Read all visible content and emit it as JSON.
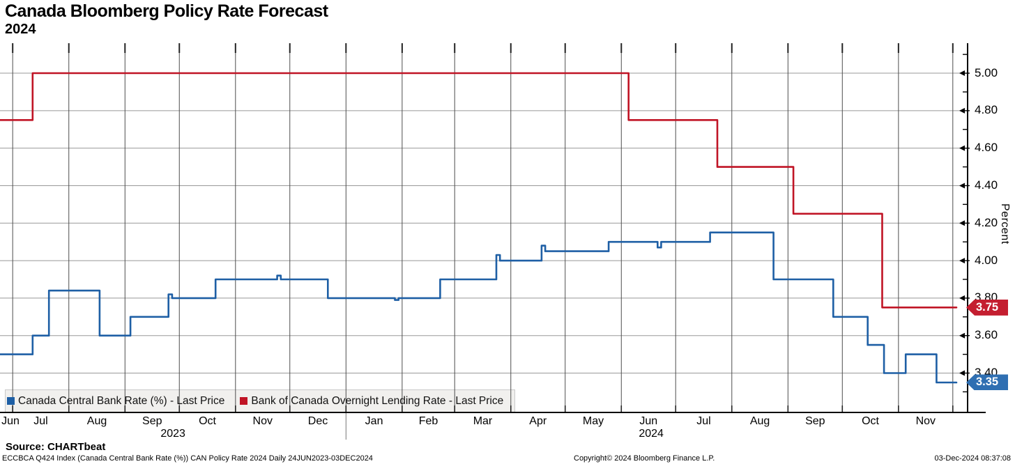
{
  "header": {
    "title": "Canada Bloomberg Policy Rate Forecast",
    "subtitle": "2024"
  },
  "chart_data": {
    "type": "line",
    "style": "step",
    "x_axis": {
      "start_date": "2023-06-24",
      "end_date": "2024-12-03",
      "month_labels": [
        "Jun",
        "Jul",
        "Aug",
        "Sep",
        "Oct",
        "Nov",
        "Dec",
        "Jan",
        "Feb",
        "Mar",
        "Apr",
        "May",
        "Jun",
        "Jul",
        "Aug",
        "Sep",
        "Oct",
        "Nov"
      ],
      "year_labels": [
        "2023",
        "2024"
      ],
      "year_separator_date": "2024-01-01",
      "grid": true
    },
    "y_axis": {
      "label": "Percent",
      "side": "right",
      "visible_range": [
        3.19,
        5.16
      ],
      "major_ticks": [
        5.0,
        4.8,
        4.6,
        4.4,
        4.2,
        4.0,
        3.8,
        3.6,
        3.4
      ],
      "minor_ticks": [
        5.1,
        4.9,
        4.7,
        4.5,
        4.3,
        4.1,
        3.9,
        3.7,
        3.5,
        3.3
      ],
      "grid": true
    },
    "legend_position": "bottom-left-inside",
    "series": [
      {
        "name": "Canada Central Bank Rate (%) - Last Price",
        "color": "#1e5fa5",
        "badge_color": "#2f6fb2",
        "last_price": 3.35,
        "steps": [
          {
            "date": "2023-06-24",
            "value": 3.5
          },
          {
            "date": "2023-07-12",
            "value": 3.6
          },
          {
            "date": "2023-07-21",
            "value": 3.84
          },
          {
            "date": "2023-08-18",
            "value": 3.6
          },
          {
            "date": "2023-09-04",
            "value": 3.7
          },
          {
            "date": "2023-09-25",
            "value": 3.82
          },
          {
            "date": "2023-09-27",
            "value": 3.8
          },
          {
            "date": "2023-10-21",
            "value": 3.9
          },
          {
            "date": "2023-11-24",
            "value": 3.92
          },
          {
            "date": "2023-11-26",
            "value": 3.9
          },
          {
            "date": "2023-12-22",
            "value": 3.8
          },
          {
            "date": "2024-01-28",
            "value": 3.79
          },
          {
            "date": "2024-01-30",
            "value": 3.8
          },
          {
            "date": "2024-02-22",
            "value": 3.9
          },
          {
            "date": "2024-03-24",
            "value": 4.03
          },
          {
            "date": "2024-03-26",
            "value": 4.0
          },
          {
            "date": "2024-04-18",
            "value": 4.08
          },
          {
            "date": "2024-04-20",
            "value": 4.05
          },
          {
            "date": "2024-05-25",
            "value": 4.1
          },
          {
            "date": "2024-06-21",
            "value": 4.07
          },
          {
            "date": "2024-06-23",
            "value": 4.1
          },
          {
            "date": "2024-07-20",
            "value": 4.15
          },
          {
            "date": "2024-08-24",
            "value": 3.9
          },
          {
            "date": "2024-09-26",
            "value": 3.7
          },
          {
            "date": "2024-10-15",
            "value": 3.55
          },
          {
            "date": "2024-10-24",
            "value": 3.4
          },
          {
            "date": "2024-11-05",
            "value": 3.5
          },
          {
            "date": "2024-11-22",
            "value": 3.35
          }
        ]
      },
      {
        "name": "Bank of Canada Overnight Lending Rate - Last Price",
        "color": "#c01425",
        "badge_color": "#c41e30",
        "last_price": 3.75,
        "steps": [
          {
            "date": "2023-06-24",
            "value": 4.75
          },
          {
            "date": "2023-07-12",
            "value": 5.0
          },
          {
            "date": "2024-06-05",
            "value": 4.75
          },
          {
            "date": "2024-07-24",
            "value": 4.5
          },
          {
            "date": "2024-09-04",
            "value": 4.25
          },
          {
            "date": "2024-10-23",
            "value": 3.75
          }
        ]
      }
    ]
  },
  "footer": {
    "source": "Source: CHARTbeat",
    "disclaimer": "ECCBCA Q424 Index (Canada Central Bank Rate (%)) CAN Policy Rate 2024  Daily 24JUN2023-03DEC2024",
    "copyright": "Copyright© 2024 Bloomberg Finance L.P.",
    "timestamp": "03-Dec-2024 08:37:08"
  }
}
